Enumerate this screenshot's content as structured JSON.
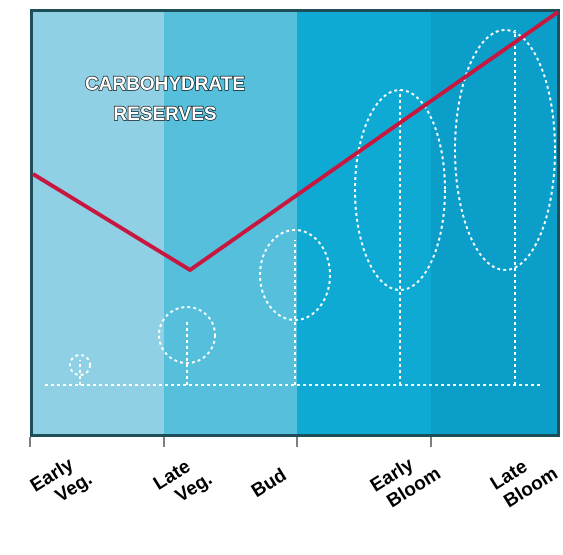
{
  "title_lines": [
    "CARBOHYDRATE",
    "RESERVES"
  ],
  "stages": [
    [
      "Early",
      "Veg."
    ],
    [
      "Late",
      "Veg."
    ],
    [
      "Bud"
    ],
    [
      "Early",
      "Bloom"
    ],
    [
      "Late",
      "Bloom"
    ]
  ]
}
